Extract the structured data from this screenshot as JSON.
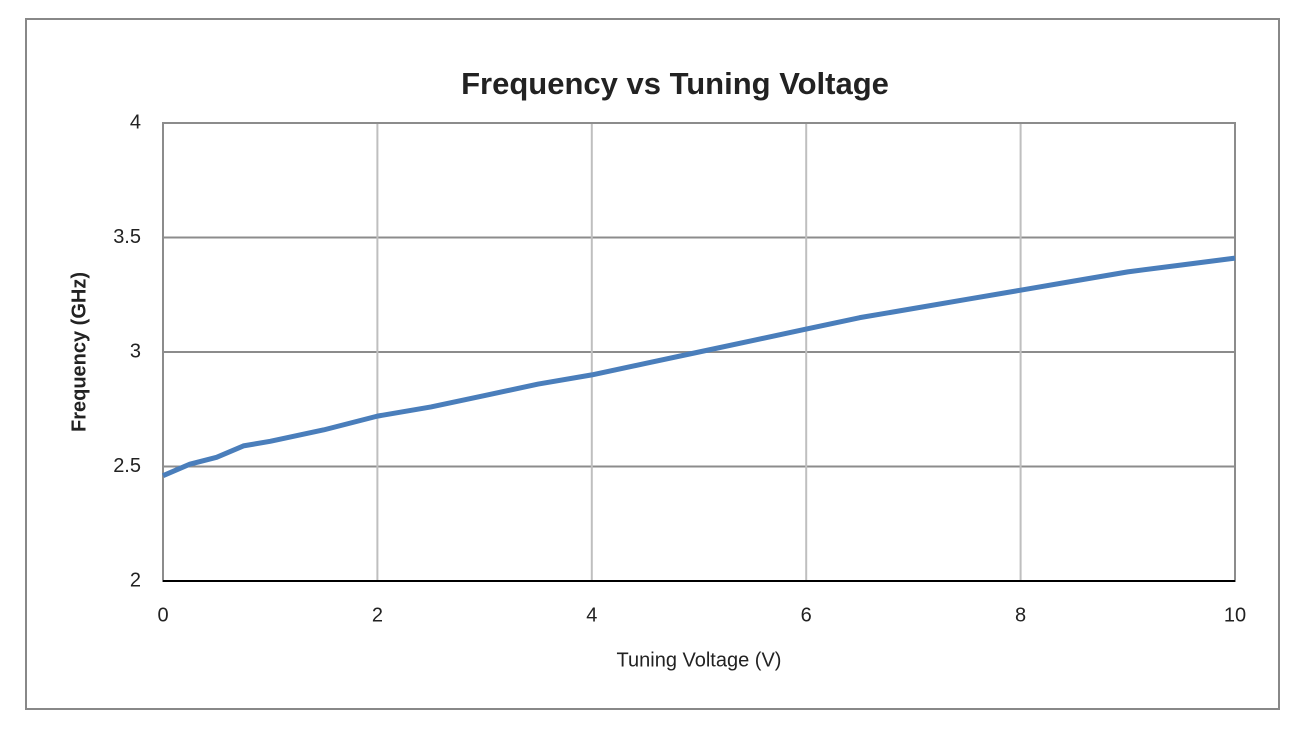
{
  "chart_data": {
    "type": "line",
    "title": "Frequency vs Tuning Voltage",
    "x_label": "Tuning Voltage (V)",
    "y_label": "Frequency (GHz)",
    "x": [
      0,
      0.25,
      0.5,
      0.75,
      1,
      1.5,
      2,
      2.5,
      3,
      3.5,
      4,
      4.5,
      5,
      5.5,
      6,
      6.5,
      7,
      7.5,
      8,
      8.5,
      9,
      9.5,
      10
    ],
    "series": [
      {
        "name": "Frequency",
        "color": "#4a7ebb",
        "values": [
          2.46,
          2.51,
          2.54,
          2.59,
          2.61,
          2.66,
          2.72,
          2.76,
          2.81,
          2.86,
          2.9,
          2.95,
          3.0,
          3.05,
          3.1,
          3.15,
          3.19,
          3.23,
          3.27,
          3.31,
          3.35,
          3.38,
          3.41
        ]
      }
    ],
    "xlim": [
      0,
      10
    ],
    "xticks": [
      0,
      2,
      4,
      6,
      8,
      10
    ],
    "ylim": [
      2,
      4
    ],
    "yticks": [
      2,
      2.5,
      3,
      3.5,
      4
    ],
    "grid": true
  }
}
